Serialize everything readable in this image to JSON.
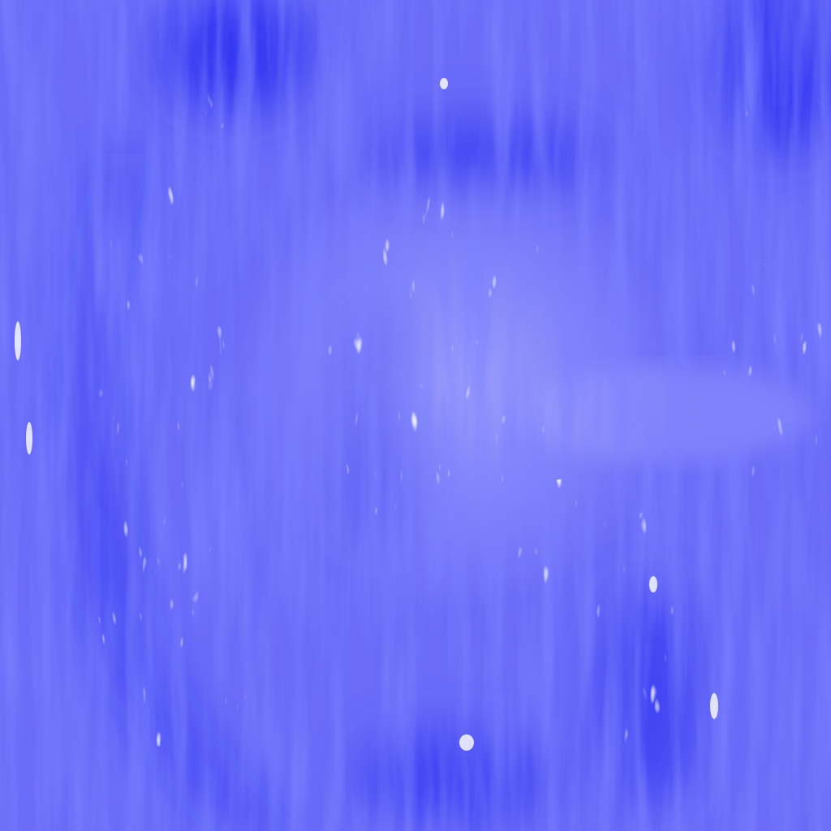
{
  "image": {
    "kind": "procedural-texture",
    "description_hidden": "",
    "colors": {
      "base": "#6a6cf8",
      "deep": "#1d22f0",
      "mid": "#4d50f5",
      "light": "#9ea0ff",
      "highlight": "#e6e8ff"
    }
  }
}
